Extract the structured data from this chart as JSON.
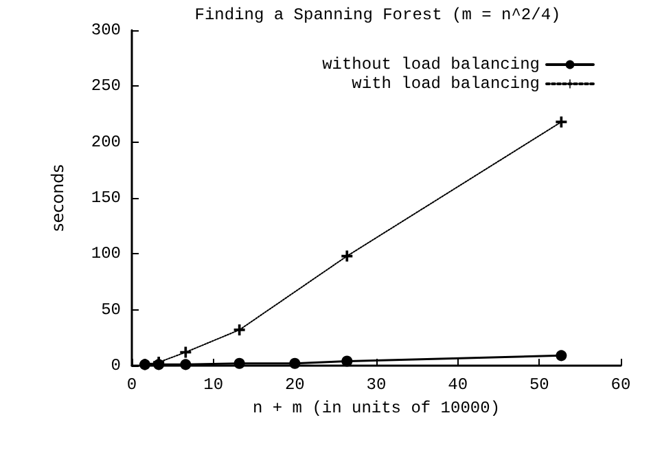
{
  "chart_data": {
    "type": "line",
    "title": "Finding a Spanning Forest (m = n^2/4)",
    "xlabel": "n + m (in units of 10000)",
    "ylabel": "seconds",
    "xlim": [
      0,
      60
    ],
    "xticks": [
      0,
      10,
      20,
      30,
      40,
      50,
      60
    ],
    "ylim": [
      0,
      300
    ],
    "yticks": [
      0,
      50,
      100,
      150,
      200,
      250,
      300
    ],
    "grid": false,
    "legend": "top right",
    "series": [
      {
        "name": "without load balancing",
        "color": "#000000",
        "marker": "circle",
        "line_style": "solid",
        "x": [
          1.6,
          3.3,
          6.6,
          13.2,
          20,
          26.4,
          52.7
        ],
        "values": [
          1,
          1,
          1,
          2,
          2,
          4,
          9
        ]
      },
      {
        "name": "with load balancing",
        "color": "#000000",
        "marker": "cross",
        "line_style": "dotted",
        "x": [
          1.6,
          3.3,
          6.6,
          13.2,
          26.4,
          52.7
        ],
        "values": [
          1,
          3,
          12,
          32,
          98,
          218
        ]
      }
    ]
  }
}
